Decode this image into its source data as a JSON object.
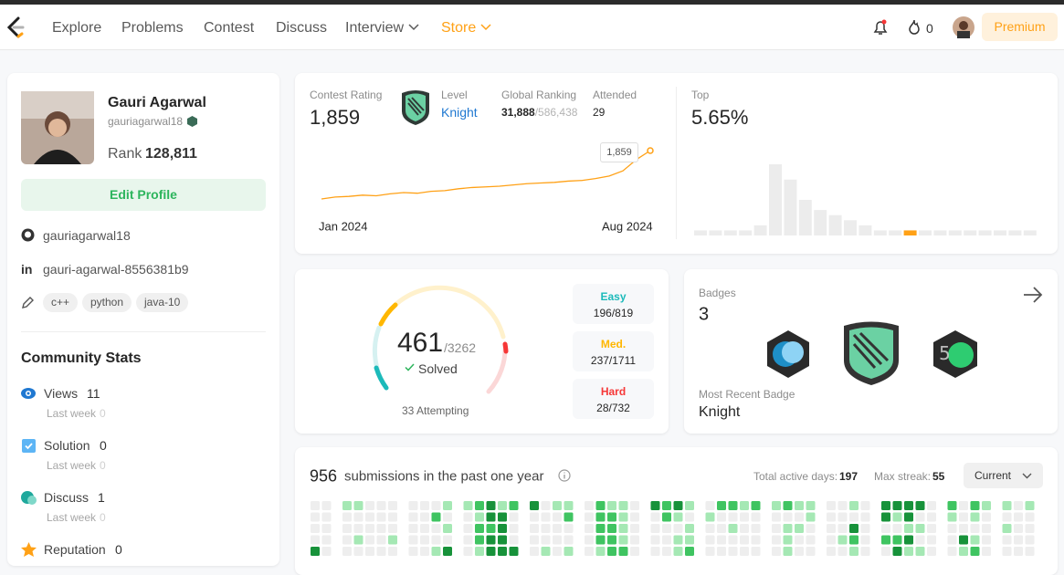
{
  "nav": {
    "items": [
      "Explore",
      "Problems",
      "Contest",
      "Discuss",
      "Interview",
      "Store"
    ],
    "streak": "0",
    "premium": "Premium"
  },
  "profile": {
    "name": "Gauri Agarwal",
    "username": "gauriagarwal18",
    "rank_label": "Rank",
    "rank": "128,811",
    "edit": "Edit Profile",
    "github": "gauriagarwal18",
    "linkedin": "gauri-agarwal-8556381b9",
    "tags": [
      "c++",
      "python",
      "java-10"
    ]
  },
  "community": {
    "title": "Community Stats",
    "items": [
      {
        "label": "Views",
        "value": "11",
        "sub": "Last week",
        "sub_value": "0"
      },
      {
        "label": "Solution",
        "value": "0",
        "sub": "Last week",
        "sub_value": "0"
      },
      {
        "label": "Discuss",
        "value": "1",
        "sub": "Last week",
        "sub_value": "0"
      },
      {
        "label": "Reputation",
        "value": "0"
      }
    ]
  },
  "contest": {
    "rating_label": "Contest Rating",
    "rating": "1,859",
    "level_label": "Level",
    "level": "Knight",
    "global_label": "Global Ranking",
    "global": "31,888",
    "global_total": "/586,438",
    "attended_label": "Attended",
    "attended": "29",
    "top_label": "Top",
    "top": "5.65%",
    "start": "Jan 2024",
    "end": "Aug 2024",
    "tooltip": "1,859",
    "history": [
      1480,
      1495,
      1500,
      1510,
      1505,
      1520,
      1530,
      1525,
      1540,
      1545,
      1560,
      1570,
      1575,
      1580,
      1590,
      1600,
      1605,
      1610,
      1620,
      1625,
      1640,
      1660,
      1700,
      1790,
      1859
    ],
    "distribution": [
      1,
      1,
      1,
      1,
      2,
      14,
      11,
      7,
      5,
      4,
      3,
      2,
      1,
      1,
      1,
      1,
      1,
      1,
      1,
      1,
      1,
      1,
      1
    ],
    "distribution_highlight": 14
  },
  "solved": {
    "count": "461",
    "total": "/3262",
    "label": "Solved",
    "attempting": "33 Attempting",
    "levels": [
      {
        "label": "Easy",
        "value": "196/819"
      },
      {
        "label": "Med.",
        "value": "237/1711"
      },
      {
        "label": "Hard",
        "value": "28/732"
      }
    ]
  },
  "badges": {
    "label": "Badges",
    "count": "3",
    "recent_label": "Most Recent Badge",
    "recent": "Knight"
  },
  "submissions": {
    "count": "956",
    "text": "submissions in the past one year",
    "active_label": "Total active days:",
    "active": "197",
    "streak_label": "Max streak:",
    "streak": "55",
    "select": "Current",
    "level_colors": [
      "#eeeeee",
      "#a5e8b4",
      "#3fc461",
      "#17923a"
    ],
    "months": [
      [
        [
          0,
          0,
          0,
          0,
          3
        ],
        [
          0,
          0,
          0,
          0,
          0
        ]
      ],
      [
        [
          1,
          0,
          0,
          0,
          0
        ],
        [
          1,
          0,
          0,
          1,
          0
        ],
        [
          0,
          0,
          0,
          0,
          0
        ],
        [
          0,
          0,
          0,
          0,
          0
        ],
        [
          0,
          0,
          0,
          1,
          0
        ]
      ],
      [
        [
          0,
          0,
          0,
          0,
          0
        ],
        [
          0,
          0,
          0,
          0,
          0
        ],
        [
          0,
          2,
          0,
          0,
          1
        ],
        [
          1,
          0,
          1,
          0,
          3
        ]
      ],
      [
        [
          1,
          0,
          0,
          0,
          0
        ],
        [
          2,
          1,
          2,
          2,
          1
        ],
        [
          3,
          3,
          2,
          3,
          3
        ],
        [
          1,
          3,
          3,
          3,
          3
        ],
        [
          2,
          0,
          0,
          0,
          3
        ]
      ],
      [
        [
          3,
          0,
          0,
          0,
          0
        ],
        [
          0,
          0,
          0,
          0,
          1
        ],
        [
          1,
          0,
          0,
          0,
          0
        ],
        [
          1,
          2,
          0,
          0,
          1
        ]
      ],
      [
        [
          0,
          0,
          0,
          0,
          0
        ],
        [
          2,
          2,
          2,
          2,
          1
        ],
        [
          1,
          2,
          2,
          2,
          2
        ],
        [
          1,
          1,
          1,
          1,
          2
        ],
        [
          0,
          0,
          0,
          0,
          0
        ]
      ],
      [
        [
          3,
          0,
          0,
          0,
          0
        ],
        [
          2,
          2,
          0,
          0,
          0
        ],
        [
          3,
          1,
          0,
          1,
          1
        ],
        [
          1,
          0,
          1,
          1,
          2
        ]
      ],
      [
        [
          0,
          1,
          0,
          0,
          0
        ],
        [
          2,
          0,
          0,
          0,
          0
        ],
        [
          2,
          0,
          1,
          0,
          0
        ],
        [
          1,
          0,
          0,
          0,
          0
        ],
        [
          2,
          0,
          0,
          0,
          0
        ]
      ],
      [
        [
          1,
          0,
          0,
          0,
          0
        ],
        [
          2,
          0,
          1,
          1,
          1
        ],
        [
          1,
          0,
          1,
          0,
          0
        ],
        [
          1,
          1,
          0,
          0,
          0
        ]
      ],
      [
        [
          0,
          0,
          0,
          0,
          0
        ],
        [
          0,
          0,
          0,
          1,
          0
        ],
        [
          1,
          0,
          3,
          2,
          1
        ],
        [
          0,
          0,
          0,
          0,
          0
        ]
      ],
      [
        [
          3,
          3,
          0,
          2,
          0
        ],
        [
          3,
          1,
          0,
          2,
          3
        ],
        [
          3,
          3,
          1,
          3,
          1
        ],
        [
          3,
          0,
          1,
          0,
          1
        ],
        [
          0,
          0,
          0,
          0,
          0
        ]
      ],
      [
        [
          2,
          1,
          0,
          0,
          0
        ],
        [
          0,
          0,
          0,
          3,
          1
        ],
        [
          2,
          1,
          0,
          1,
          2
        ],
        [
          1,
          0,
          0,
          0,
          0
        ]
      ],
      [
        [
          1,
          0,
          1,
          0,
          0
        ],
        [
          0,
          0,
          0,
          0,
          0
        ],
        [
          1,
          0,
          0,
          0,
          0
        ]
      ]
    ]
  }
}
